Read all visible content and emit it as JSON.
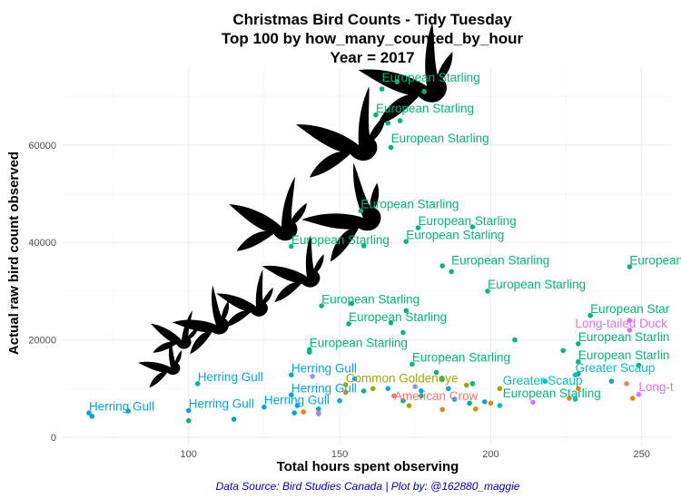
{
  "chart_data": {
    "type": "scatter",
    "title_lines": [
      "Christmas Bird Counts - Tidy Tuesday",
      "Top 100 by how_many_counted_by_hour",
      "Year = 2017"
    ],
    "xlabel": "Total hours spent observing",
    "ylabel": "Actual raw bird count observed",
    "caption": "Data Source: Bird Studies Canada | Plot by: @162880_maggie",
    "xlim": [
      58,
      260
    ],
    "ylim": [
      -1500,
      76000
    ],
    "x_ticks": [
      100,
      150,
      200,
      250
    ],
    "y_ticks": [
      0,
      20000,
      40000,
      60000
    ],
    "y_tick_labels": [
      "0",
      "20000",
      "40000",
      "60000"
    ],
    "grid": true,
    "legend": "none",
    "colors": {
      "starling": "#00b67a",
      "gull": "#00a6e3",
      "goldeneye": "#a3a500",
      "crow": "#f8766d",
      "duck": "#e76bf3",
      "scaup": "#00bfc4",
      "orange": "#e58700",
      "purple": "#9590ff"
    },
    "points": [
      {
        "x": 164,
        "y": 71500,
        "c": "starling"
      },
      {
        "x": 169,
        "y": 73000,
        "c": "starling"
      },
      {
        "x": 178,
        "y": 71000,
        "c": "starling"
      },
      {
        "x": 162,
        "y": 66200,
        "c": "starling"
      },
      {
        "x": 166,
        "y": 64500,
        "c": "starling"
      },
      {
        "x": 170,
        "y": 65000,
        "c": "starling"
      },
      {
        "x": 167,
        "y": 59500,
        "c": "starling"
      },
      {
        "x": 157,
        "y": 46500,
        "c": "starling"
      },
      {
        "x": 176,
        "y": 43000,
        "c": "starling"
      },
      {
        "x": 194,
        "y": 43200,
        "c": "starling"
      },
      {
        "x": 172,
        "y": 40200,
        "c": "starling"
      },
      {
        "x": 134,
        "y": 39200,
        "c": "starling"
      },
      {
        "x": 158,
        "y": 39300,
        "c": "starling"
      },
      {
        "x": 184,
        "y": 35200,
        "c": "starling"
      },
      {
        "x": 187,
        "y": 34000,
        "c": "starling"
      },
      {
        "x": 246,
        "y": 35000,
        "c": "starling"
      },
      {
        "x": 199,
        "y": 30000,
        "c": "starling"
      },
      {
        "x": 144,
        "y": 27000,
        "c": "starling"
      },
      {
        "x": 154,
        "y": 27500,
        "c": "starling"
      },
      {
        "x": 172,
        "y": 26000,
        "c": "starling"
      },
      {
        "x": 153,
        "y": 23300,
        "c": "starling"
      },
      {
        "x": 167,
        "y": 23500,
        "c": "starling"
      },
      {
        "x": 171,
        "y": 21500,
        "c": "starling"
      },
      {
        "x": 233,
        "y": 25000,
        "c": "starling"
      },
      {
        "x": 208,
        "y": 20000,
        "c": "starling"
      },
      {
        "x": 229,
        "y": 19200,
        "c": "starling"
      },
      {
        "x": 140,
        "y": 17500,
        "c": "starling"
      },
      {
        "x": 140,
        "y": 18000,
        "c": "starling"
      },
      {
        "x": 224,
        "y": 17800,
        "c": "starling"
      },
      {
        "x": 229,
        "y": 15500,
        "c": "starling"
      },
      {
        "x": 174,
        "y": 15000,
        "c": "starling"
      },
      {
        "x": 182,
        "y": 13300,
        "c": "starling"
      },
      {
        "x": 229,
        "y": 13000,
        "c": "starling"
      },
      {
        "x": 249,
        "y": 14800,
        "c": "starling"
      },
      {
        "x": 184,
        "y": 12000,
        "c": "starling"
      },
      {
        "x": 194,
        "y": 11000,
        "c": "starling"
      },
      {
        "x": 158,
        "y": 9500,
        "c": "starling"
      },
      {
        "x": 171,
        "y": 7500,
        "c": "starling"
      },
      {
        "x": 177,
        "y": 8500,
        "c": "starling"
      },
      {
        "x": 193,
        "y": 7000,
        "c": "starling"
      },
      {
        "x": 100,
        "y": 3400,
        "c": "starling"
      },
      {
        "x": 67,
        "y": 5000,
        "c": "gull"
      },
      {
        "x": 68,
        "y": 4300,
        "c": "gull"
      },
      {
        "x": 80,
        "y": 5400,
        "c": "gull"
      },
      {
        "x": 100,
        "y": 5500,
        "c": "gull"
      },
      {
        "x": 103,
        "y": 11000,
        "c": "gull"
      },
      {
        "x": 115,
        "y": 3700,
        "c": "gull"
      },
      {
        "x": 125,
        "y": 6200,
        "c": "gull"
      },
      {
        "x": 134,
        "y": 12800,
        "c": "gull"
      },
      {
        "x": 134,
        "y": 8700,
        "c": "gull"
      },
      {
        "x": 136,
        "y": 6500,
        "c": "gull"
      },
      {
        "x": 135,
        "y": 5000,
        "c": "gull"
      },
      {
        "x": 143,
        "y": 5800,
        "c": "gull"
      },
      {
        "x": 150,
        "y": 7500,
        "c": "gull"
      },
      {
        "x": 155,
        "y": 12000,
        "c": "gull"
      },
      {
        "x": 166,
        "y": 10000,
        "c": "gull"
      },
      {
        "x": 177,
        "y": 9500,
        "c": "gull"
      },
      {
        "x": 186,
        "y": 10000,
        "c": "gull"
      },
      {
        "x": 188,
        "y": 7800,
        "c": "gull"
      },
      {
        "x": 198,
        "y": 7300,
        "c": "gull"
      },
      {
        "x": 240,
        "y": 11500,
        "c": "gull"
      },
      {
        "x": 152,
        "y": 10800,
        "c": "goldeneye"
      },
      {
        "x": 161,
        "y": 10000,
        "c": "goldeneye"
      },
      {
        "x": 173,
        "y": 6500,
        "c": "goldeneye"
      },
      {
        "x": 192,
        "y": 10700,
        "c": "goldeneye"
      },
      {
        "x": 203,
        "y": 10000,
        "c": "goldeneye"
      },
      {
        "x": 168,
        "y": 8500,
        "c": "crow"
      },
      {
        "x": 245,
        "y": 11000,
        "c": "crow"
      },
      {
        "x": 246,
        "y": 22000,
        "c": "duck"
      },
      {
        "x": 246,
        "y": 24000,
        "c": "duck"
      },
      {
        "x": 249,
        "y": 8800,
        "c": "duck"
      },
      {
        "x": 214,
        "y": 7200,
        "c": "duck"
      },
      {
        "x": 218,
        "y": 11500,
        "c": "scaup"
      },
      {
        "x": 228,
        "y": 7800,
        "c": "scaup"
      },
      {
        "x": 228,
        "y": 12800,
        "c": "scaup"
      },
      {
        "x": 203,
        "y": 6500,
        "c": "scaup"
      },
      {
        "x": 138,
        "y": 5200,
        "c": "orange"
      },
      {
        "x": 143,
        "y": 5000,
        "c": "orange"
      },
      {
        "x": 152,
        "y": 9200,
        "c": "orange"
      },
      {
        "x": 184,
        "y": 5700,
        "c": "orange"
      },
      {
        "x": 195,
        "y": 5800,
        "c": "orange"
      },
      {
        "x": 200,
        "y": 7000,
        "c": "orange"
      },
      {
        "x": 226,
        "y": 8000,
        "c": "orange"
      },
      {
        "x": 229,
        "y": 10000,
        "c": "orange"
      },
      {
        "x": 247,
        "y": 8000,
        "c": "orange"
      },
      {
        "x": 141,
        "y": 12500,
        "c": "purple"
      },
      {
        "x": 143,
        "y": 4800,
        "c": "purple"
      },
      {
        "x": 175,
        "y": 10400,
        "c": "purple"
      }
    ],
    "labels": [
      {
        "text": "European Starling",
        "x": 164,
        "y": 73000,
        "c": "starling"
      },
      {
        "text": "European Starling",
        "x": 162,
        "y": 66700,
        "c": "starling"
      },
      {
        "text": "European Starling",
        "x": 167,
        "y": 60500,
        "c": "starling"
      },
      {
        "text": "European Starling",
        "x": 157,
        "y": 47000,
        "c": "starling"
      },
      {
        "text": "European Starling",
        "x": 176,
        "y": 43600,
        "c": "starling"
      },
      {
        "text": "European Starling",
        "x": 172,
        "y": 40700,
        "c": "starling"
      },
      {
        "text": "European Starling",
        "x": 134,
        "y": 39700,
        "c": "starling"
      },
      {
        "text": "European Starling",
        "x": 187,
        "y": 35500,
        "c": "starling"
      },
      {
        "text": "European S",
        "x": 246,
        "y": 35500,
        "c": "starling"
      },
      {
        "text": "European Starling",
        "x": 199,
        "y": 30500,
        "c": "starling"
      },
      {
        "text": "European Starling",
        "x": 144,
        "y": 27500,
        "c": "starling"
      },
      {
        "text": "European Starling",
        "x": 153,
        "y": 23800,
        "c": "starling"
      },
      {
        "text": "European Star",
        "x": 233,
        "y": 25500,
        "c": "starling"
      },
      {
        "text": "European Starlin",
        "x": 229,
        "y": 19700,
        "c": "starling"
      },
      {
        "text": "European Starling",
        "x": 140,
        "y": 18500,
        "c": "starling"
      },
      {
        "text": "European Starlin",
        "x": 229,
        "y": 16000,
        "c": "starling"
      },
      {
        "text": "European Starling",
        "x": 174,
        "y": 15500,
        "c": "starling"
      },
      {
        "text": "European Starling",
        "x": 204,
        "y": 8200,
        "c": "starling"
      },
      {
        "text": "Long-tailed Duck",
        "x": 228,
        "y": 22500,
        "c": "duck"
      },
      {
        "text": "Long-t",
        "x": 249,
        "y": 9500,
        "c": "duck"
      },
      {
        "text": "Greater Scaup",
        "x": 228,
        "y": 13400,
        "c": "scaup"
      },
      {
        "text": "Greater Scaup",
        "x": 204,
        "y": 10800,
        "c": "scaup"
      },
      {
        "text": "Herring Gull",
        "x": 103,
        "y": 11500,
        "c": "gull"
      },
      {
        "text": "Herring Gull",
        "x": 134,
        "y": 13300,
        "c": "gull"
      },
      {
        "text": "Herring Gull",
        "x": 134,
        "y": 9200,
        "c": "gull"
      },
      {
        "text": "Herring Gull",
        "x": 125,
        "y": 6800,
        "c": "gull"
      },
      {
        "text": "Herring Gull",
        "x": 100,
        "y": 6000,
        "c": "gull"
      },
      {
        "text": "Herring Gull",
        "x": 67,
        "y": 5500,
        "c": "gull"
      },
      {
        "text": "Common Goldeneye",
        "x": 152,
        "y": 11300,
        "c": "goldeneye"
      },
      {
        "text": "American Crow",
        "x": 168,
        "y": 7600,
        "c": "crow"
      }
    ]
  }
}
